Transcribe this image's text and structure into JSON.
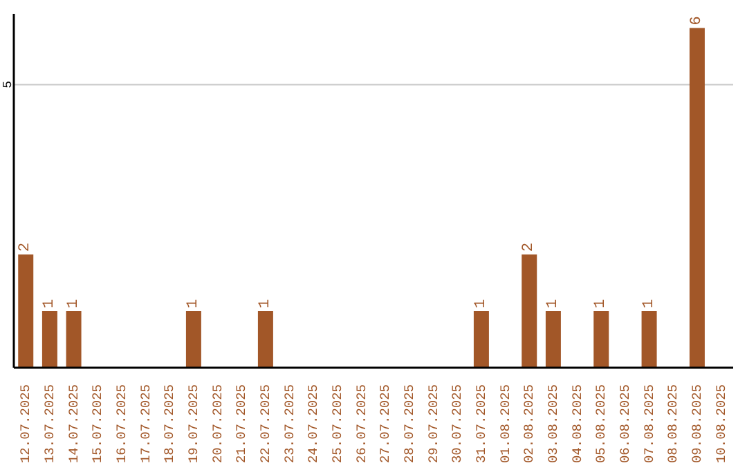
{
  "chart_data": {
    "type": "bar",
    "categories": [
      "12.07.2025",
      "13.07.2025",
      "14.07.2025",
      "15.07.2025",
      "16.07.2025",
      "17.07.2025",
      "18.07.2025",
      "19.07.2025",
      "20.07.2025",
      "21.07.2025",
      "22.07.2025",
      "23.07.2025",
      "24.07.2025",
      "25.07.2025",
      "26.07.2025",
      "27.07.2025",
      "28.07.2025",
      "29.07.2025",
      "30.07.2025",
      "31.07.2025",
      "01.08.2025",
      "02.08.2025",
      "03.08.2025",
      "04.08.2025",
      "05.08.2025",
      "06.08.2025",
      "07.08.2025",
      "08.08.2025",
      "09.08.2025",
      "10.08.2025"
    ],
    "values": [
      2,
      1,
      1,
      0,
      0,
      0,
      0,
      1,
      0,
      0,
      1,
      0,
      0,
      0,
      0,
      0,
      0,
      0,
      0,
      1,
      0,
      2,
      1,
      0,
      1,
      0,
      1,
      0,
      6,
      0
    ],
    "value_labels": [
      "2",
      "1",
      "1",
      null,
      null,
      null,
      null,
      "1",
      null,
      null,
      "1",
      null,
      null,
      null,
      null,
      null,
      null,
      null,
      null,
      "1",
      null,
      "2",
      "1",
      null,
      "1",
      null,
      "1",
      null,
      "6",
      null
    ],
    "color": "#a25728",
    "ylim": [
      0,
      6.25
    ],
    "yticks": [
      5
    ],
    "grid": "y",
    "legend": false
  }
}
